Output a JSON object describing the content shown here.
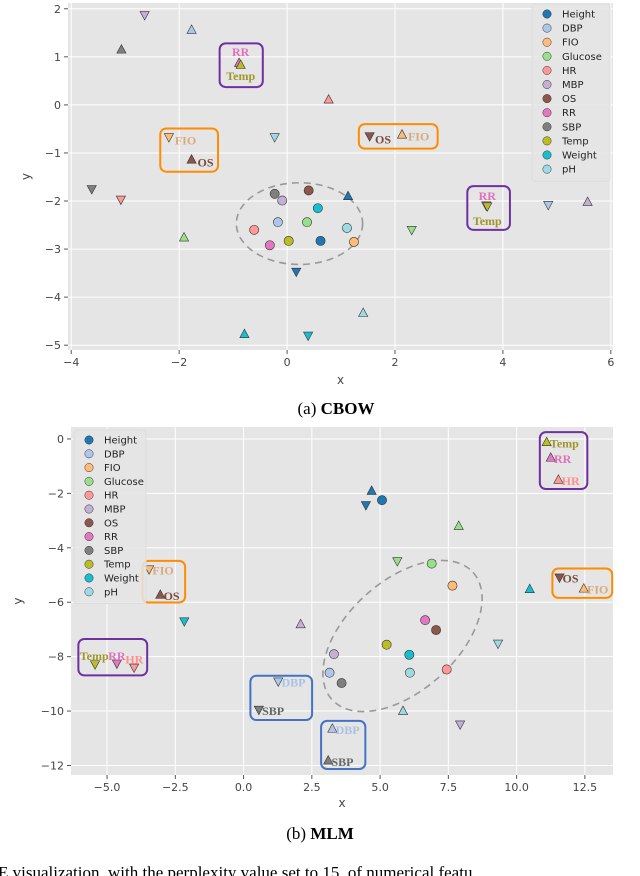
{
  "colors": {
    "Height": "#1f77b4",
    "DBP": "#aec7e8",
    "FIO": "#ffbb78",
    "Glucose": "#98df8a",
    "HR": "#ff9896",
    "MBP": "#c5b0d5",
    "OS": "#8c564b",
    "RR": "#e377c2",
    "SBP": "#7f7f7f",
    "Temp": "#bcbd22",
    "Weight": "#17becf",
    "pH": "#9edae5"
  },
  "label_colors": {
    "RR": "#e070bd",
    "Temp": "#a0962a",
    "FIO": "#d9aa78",
    "OS": "#7a4a3f",
    "HR": "#ff8f8c",
    "DBP": "#a9c2e6",
    "SBP": "#666666"
  },
  "box_colors": {
    "purple": "#7030a0",
    "orange": "#ff8c00",
    "blue": "#4472c4"
  },
  "legend_entries": [
    "Height",
    "DBP",
    "FIO",
    "Glucose",
    "HR",
    "MBP",
    "OS",
    "RR",
    "SBP",
    "Temp",
    "Weight",
    "pH"
  ],
  "footer_text": "E visualization, with the perplexity value set to 15, of numerical featu",
  "chart_data": [
    {
      "type": "scatter",
      "caption_prefix": "(a) ",
      "caption_bold": "CBOW",
      "xlabel": "x",
      "ylabel": "y",
      "xlim": [
        -4.06,
        6.04
      ],
      "ylim": [
        -5.1,
        2.12
      ],
      "xticks": [
        -4,
        -2,
        0,
        2,
        4,
        6
      ],
      "xtick_labels": [
        "−4",
        "−2",
        "0",
        "2",
        "4",
        "6"
      ],
      "yticks": [
        2,
        1,
        0,
        -1,
        -2,
        -3,
        -4,
        -5
      ],
      "ytick_labels": [
        "2",
        "1",
        "0",
        "−1",
        "−2",
        "−3",
        "−4",
        "−5"
      ],
      "grid": true,
      "legend": "top-right",
      "points": [
        {
          "label": "SBP",
          "marker": "o",
          "x": -0.23,
          "y": -1.85
        },
        {
          "label": "MBP",
          "marker": "o",
          "x": -0.09,
          "y": -1.99
        },
        {
          "label": "OS",
          "marker": "o",
          "x": 0.4,
          "y": -1.78
        },
        {
          "label": "Weight",
          "marker": "o",
          "x": 0.57,
          "y": -2.15
        },
        {
          "label": "DBP",
          "marker": "o",
          "x": -0.17,
          "y": -2.44
        },
        {
          "label": "Glucose",
          "marker": "o",
          "x": 0.37,
          "y": -2.44
        },
        {
          "label": "HR",
          "marker": "o",
          "x": -0.61,
          "y": -2.6
        },
        {
          "label": "pH",
          "marker": "o",
          "x": 1.11,
          "y": -2.56
        },
        {
          "label": "RR",
          "marker": "o",
          "x": -0.32,
          "y": -2.92
        },
        {
          "label": "Temp",
          "marker": "o",
          "x": 0.03,
          "y": -2.83
        },
        {
          "label": "Height",
          "marker": "o",
          "x": 0.62,
          "y": -2.83
        },
        {
          "label": "FIO",
          "marker": "o",
          "x": 1.24,
          "y": -2.85
        },
        {
          "label": "MBP",
          "marker": "v",
          "x": -2.64,
          "y": 1.87
        },
        {
          "label": "DBP",
          "marker": "^",
          "x": -1.77,
          "y": 1.56
        },
        {
          "label": "SBP",
          "marker": "^",
          "x": -3.07,
          "y": 1.15
        },
        {
          "label": "RR",
          "marker": "^",
          "x": -0.89,
          "y": 0.87
        },
        {
          "label": "Temp",
          "marker": "^",
          "x": -0.86,
          "y": 0.83
        },
        {
          "label": "HR",
          "marker": "^",
          "x": 0.77,
          "y": 0.11
        },
        {
          "label": "FIO",
          "marker": "v",
          "x": -2.19,
          "y": -0.67
        },
        {
          "label": "OS",
          "marker": "^",
          "x": -1.77,
          "y": -1.14
        },
        {
          "label": "pH",
          "marker": "v",
          "x": -0.23,
          "y": -0.67
        },
        {
          "label": "OS",
          "marker": "v",
          "x": 1.53,
          "y": -0.65
        },
        {
          "label": "FIO",
          "marker": "^",
          "x": 2.13,
          "y": -0.62
        },
        {
          "label": "SBP",
          "marker": "v",
          "x": -3.62,
          "y": -1.75
        },
        {
          "label": "HR",
          "marker": "v",
          "x": -3.08,
          "y": -1.97
        },
        {
          "label": "Height",
          "marker": "^",
          "x": 1.13,
          "y": -1.9
        },
        {
          "label": "RR",
          "marker": "v",
          "x": 3.69,
          "y": -2.09
        },
        {
          "label": "Temp",
          "marker": "v",
          "x": 3.71,
          "y": -2.11
        },
        {
          "label": "DBP",
          "marker": "v",
          "x": 4.84,
          "y": -2.08
        },
        {
          "label": "MBP",
          "marker": "^",
          "x": 5.57,
          "y": -2.02
        },
        {
          "label": "Glucose",
          "marker": "^",
          "x": -1.91,
          "y": -2.76
        },
        {
          "label": "Glucose",
          "marker": "v",
          "x": 2.31,
          "y": -2.6
        },
        {
          "label": "Height",
          "marker": "v",
          "x": 0.17,
          "y": -3.47
        },
        {
          "label": "pH",
          "marker": "^",
          "x": 1.41,
          "y": -4.33
        },
        {
          "label": "Weight",
          "marker": "^",
          "x": -0.79,
          "y": -4.77
        },
        {
          "label": "Weight",
          "marker": "v",
          "x": 0.39,
          "y": -4.8
        }
      ],
      "ellipse": {
        "cx": 0.23,
        "cy": -2.47,
        "rx": 1.17,
        "ry": 0.85
      },
      "boxes": [
        {
          "color": "purple",
          "x0": -1.25,
          "x1": -0.45,
          "y0": 1.28,
          "y1": 0.37
        },
        {
          "color": "orange",
          "x0": -2.35,
          "x1": -1.28,
          "y0": -0.49,
          "y1": -1.39
        },
        {
          "color": "orange",
          "x0": 1.33,
          "x1": 2.79,
          "y0": -0.4,
          "y1": -0.91
        },
        {
          "color": "purple",
          "x0": 3.34,
          "x1": 4.13,
          "y0": -1.69,
          "y1": -2.6
        }
      ],
      "annotations": [
        {
          "text": "RR",
          "x": -0.86,
          "y": 1.1,
          "anchor": "middle"
        },
        {
          "text": "Temp",
          "x": -0.86,
          "y": 0.6,
          "anchor": "middle"
        },
        {
          "text": "FIO",
          "x": -2.08,
          "y": -0.74,
          "anchor": "start"
        },
        {
          "text": "OS",
          "x": -1.66,
          "y": -1.2,
          "anchor": "start"
        },
        {
          "text": "OS",
          "x": 1.63,
          "y": -0.72,
          "anchor": "start"
        },
        {
          "text": "FIO",
          "x": 2.24,
          "y": -0.66,
          "anchor": "start"
        },
        {
          "text": "RR",
          "x": 3.71,
          "y": -1.9,
          "anchor": "middle"
        },
        {
          "text": "Temp",
          "x": 3.71,
          "y": -2.42,
          "anchor": "middle"
        }
      ]
    },
    {
      "type": "scatter",
      "caption_prefix": "(b) ",
      "caption_bold": "MLM",
      "xlabel": "x",
      "ylabel": "y",
      "xlim": [
        -6.32,
        13.53
      ],
      "ylim": [
        -12.35,
        0.44
      ],
      "xticks": [
        -5,
        -2.5,
        0,
        2.5,
        5,
        7.5,
        10,
        12.5
      ],
      "xtick_labels": [
        "−5.0",
        "−2.5",
        "0.0",
        "2.5",
        "5.0",
        "7.5",
        "10.0",
        "12.5"
      ],
      "yticks": [
        0,
        -2,
        -4,
        -6,
        -8,
        -10,
        -12
      ],
      "ytick_labels": [
        "0",
        "−2",
        "−4",
        "−6",
        "−8",
        "−10",
        "−12"
      ],
      "grid": true,
      "legend": "top-left",
      "points": [
        {
          "label": "Height",
          "marker": "o",
          "x": 5.07,
          "y": -2.25
        },
        {
          "label": "Glucose",
          "marker": "o",
          "x": 6.89,
          "y": -4.58
        },
        {
          "label": "FIO",
          "marker": "o",
          "x": 7.65,
          "y": -5.39
        },
        {
          "label": "RR",
          "marker": "o",
          "x": 6.65,
          "y": -6.66
        },
        {
          "label": "OS",
          "marker": "o",
          "x": 7.05,
          "y": -7.02
        },
        {
          "label": "Temp",
          "marker": "o",
          "x": 5.24,
          "y": -7.56
        },
        {
          "label": "MBP",
          "marker": "o",
          "x": 3.31,
          "y": -7.91
        },
        {
          "label": "Weight",
          "marker": "o",
          "x": 6.07,
          "y": -7.93
        },
        {
          "label": "DBP",
          "marker": "o",
          "x": 3.15,
          "y": -8.59
        },
        {
          "label": "pH",
          "marker": "o",
          "x": 6.09,
          "y": -8.59
        },
        {
          "label": "HR",
          "marker": "o",
          "x": 7.44,
          "y": -8.47
        },
        {
          "label": "SBP",
          "marker": "o",
          "x": 3.59,
          "y": -8.97
        },
        {
          "label": "Height",
          "marker": "^",
          "x": 4.69,
          "y": -1.91
        },
        {
          "label": "Height",
          "marker": "v",
          "x": 4.48,
          "y": -2.43
        },
        {
          "label": "Glucose",
          "marker": "^",
          "x": 7.88,
          "y": -3.2
        },
        {
          "label": "Glucose",
          "marker": "v",
          "x": 5.63,
          "y": -4.49
        },
        {
          "label": "Temp",
          "marker": "^",
          "x": 11.1,
          "y": -0.12
        },
        {
          "label": "RR",
          "marker": "^",
          "x": 11.25,
          "y": -0.69
        },
        {
          "label": "HR",
          "marker": "^",
          "x": 11.53,
          "y": -1.5
        },
        {
          "label": "OS",
          "marker": "v",
          "x": 11.57,
          "y": -5.09
        },
        {
          "label": "FIO",
          "marker": "^",
          "x": 12.46,
          "y": -5.5
        },
        {
          "label": "Weight",
          "marker": "^",
          "x": 10.48,
          "y": -5.52
        },
        {
          "label": "FIO",
          "marker": "v",
          "x": -3.46,
          "y": -4.79
        },
        {
          "label": "OS",
          "marker": "^",
          "x": -3.05,
          "y": -5.73
        },
        {
          "label": "Weight",
          "marker": "v",
          "x": -2.17,
          "y": -6.7
        },
        {
          "label": "MBP",
          "marker": "^",
          "x": 2.09,
          "y": -6.81
        },
        {
          "label": "Temp",
          "marker": "v",
          "x": -5.44,
          "y": -8.28
        },
        {
          "label": "RR",
          "marker": "v",
          "x": -4.64,
          "y": -8.25
        },
        {
          "label": "HR",
          "marker": "v",
          "x": -4.01,
          "y": -8.4
        },
        {
          "label": "pH",
          "marker": "v",
          "x": 9.32,
          "y": -7.52
        },
        {
          "label": "DBP",
          "marker": "v",
          "x": 1.27,
          "y": -8.91
        },
        {
          "label": "SBP",
          "marker": "v",
          "x": 0.56,
          "y": -9.95
        },
        {
          "label": "pH",
          "marker": "^",
          "x": 5.84,
          "y": -10.0
        },
        {
          "label": "MBP",
          "marker": "v",
          "x": 7.93,
          "y": -10.49
        },
        {
          "label": "DBP",
          "marker": "^",
          "x": 3.25,
          "y": -10.65
        },
        {
          "label": "SBP",
          "marker": "^",
          "x": 3.1,
          "y": -11.82
        }
      ],
      "ellipse": {
        "cx": 5.82,
        "cy": -7.24
      },
      "boxes": [
        {
          "color": "purple",
          "x0": 10.85,
          "x1": 12.59,
          "y0": 0.25,
          "y1": -1.84
        },
        {
          "color": "orange",
          "x0": 11.31,
          "x1": 13.5,
          "y0": -4.76,
          "y1": -5.84
        },
        {
          "color": "orange",
          "x0": -3.7,
          "x1": -2.14,
          "y0": -4.48,
          "y1": -6.01
        },
        {
          "color": "purple",
          "x0": -6.05,
          "x1": -3.53,
          "y0": -7.35,
          "y1": -8.69
        },
        {
          "color": "blue",
          "x0": 0.25,
          "x1": 2.51,
          "y0": -8.7,
          "y1": -10.33
        },
        {
          "color": "blue",
          "x0": 2.84,
          "x1": 4.46,
          "y0": -10.36,
          "y1": -12.13
        }
      ],
      "annotations": [
        {
          "text": "Temp",
          "x": 11.22,
          "y": -0.16,
          "anchor": "start"
        },
        {
          "text": "RR",
          "x": 11.37,
          "y": -0.73,
          "anchor": "start"
        },
        {
          "text": "HR",
          "x": 11.65,
          "y": -1.54,
          "anchor": "start"
        },
        {
          "text": "OS",
          "x": 11.68,
          "y": -5.13,
          "anchor": "start"
        },
        {
          "text": "FIO",
          "x": 12.58,
          "y": -5.54,
          "anchor": "start"
        },
        {
          "text": "FIO",
          "x": -3.34,
          "y": -4.83,
          "anchor": "start"
        },
        {
          "text": "OS",
          "x": -2.93,
          "y": -5.77,
          "anchor": "start"
        },
        {
          "text": "Temp",
          "x": -5.47,
          "y": -7.97,
          "anchor": "middle"
        },
        {
          "text": "RR",
          "x": -4.64,
          "y": -7.97,
          "anchor": "middle"
        },
        {
          "text": "HR",
          "x": -4.0,
          "y": -8.1,
          "anchor": "middle"
        },
        {
          "text": "DBP",
          "x": 1.39,
          "y": -8.95,
          "anchor": "start"
        },
        {
          "text": "SBP",
          "x": 0.68,
          "y": -10.0,
          "anchor": "start"
        },
        {
          "text": "DBP",
          "x": 3.37,
          "y": -10.7,
          "anchor": "start"
        },
        {
          "text": "SBP",
          "x": 3.22,
          "y": -11.87,
          "anchor": "start"
        }
      ]
    }
  ]
}
